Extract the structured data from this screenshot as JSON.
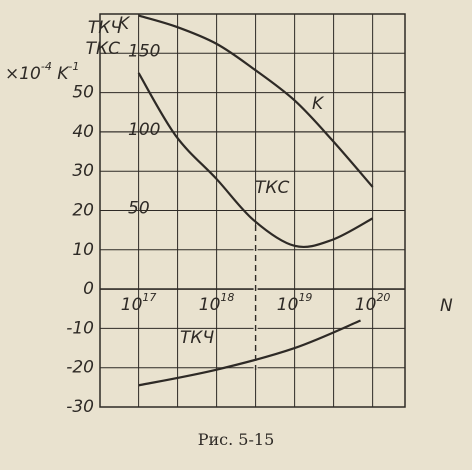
{
  "chart_data": {
    "type": "line",
    "y_label_lines": [
      "ТКЧ",
      "ТКС",
      "×10^-4 K^-1"
    ],
    "y2_label": "K",
    "x_label": "N",
    "caption": "Рис. 5-15",
    "log_x": true,
    "xlim": [
      3.2e+16,
      2.6e+20
    ],
    "xticks": [
      {
        "value": 1e+17,
        "label": "10^17"
      },
      {
        "value": 1e+18,
        "label": "10^18"
      },
      {
        "value": 1e+19,
        "label": "10^19"
      },
      {
        "value": 1e+20,
        "label": "10^20"
      }
    ],
    "x_minor_grid": [
      3.16e+17,
      3.16e+18,
      3.16e+19
    ],
    "dashed_x": 3.16e+18,
    "ylim": [
      -30,
      70
    ],
    "yticks": [
      -30,
      -20,
      -10,
      0,
      10,
      20,
      30,
      40,
      50
    ],
    "y2lim": [
      -75,
      175
    ],
    "y2ticks": [
      50,
      100,
      150
    ],
    "grid": true,
    "color": "#2e2a26",
    "series": [
      {
        "name": "K",
        "axis": "y2",
        "x": [
          1e+17,
          3e+17,
          1e+18,
          3e+18,
          1e+19,
          3e+19,
          1e+20
        ],
        "values": [
          174,
          167,
          156,
          140,
          120,
          95,
          65
        ]
      },
      {
        "name": "ТКС",
        "x": [
          1e+17,
          3e+17,
          1e+18,
          3e+18,
          1e+19,
          3e+19,
          1e+20
        ],
        "values": [
          55,
          39,
          28,
          17.5,
          11,
          12.5,
          18
        ]
      },
      {
        "name": "ТКЧ",
        "x": [
          1e+17,
          1e+18,
          1e+19,
          7e+19
        ],
        "values": [
          -24.5,
          -20.5,
          -15,
          -8
        ]
      }
    ]
  }
}
